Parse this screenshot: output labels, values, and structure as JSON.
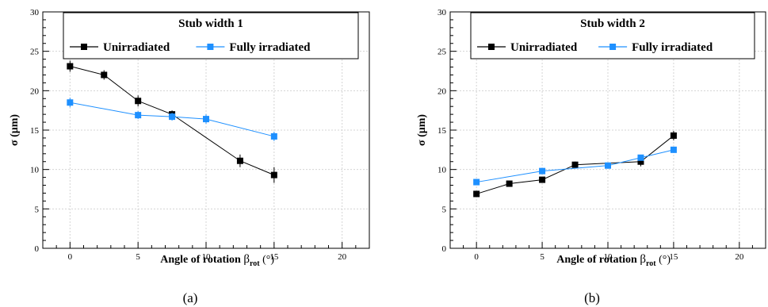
{
  "chart_data": [
    {
      "type": "line",
      "title": "Stub width 1",
      "xlabel": "Angle of rotation",
      "xlabel_symbol": "β",
      "xlabel_subscript": "rot",
      "xlabel_unit": "(°)",
      "ylabel": "σ (μm)",
      "caption": "(a)",
      "xlim": [
        -2,
        22
      ],
      "ylim": [
        0,
        30
      ],
      "xticks": [
        0,
        5,
        10,
        15,
        20
      ],
      "yticks": [
        0,
        5,
        10,
        15,
        20,
        25,
        30
      ],
      "grid": true,
      "legend_position": "top",
      "series": [
        {
          "name": "Unirradiated",
          "color": "#000000",
          "marker": "square",
          "x": [
            0,
            2.5,
            5,
            7.5,
            12.5,
            15
          ],
          "y": [
            23.1,
            22.0,
            18.7,
            17.0,
            11.1,
            9.3
          ],
          "err": [
            0.7,
            0.6,
            0.7,
            0.5,
            0.8,
            1.0
          ]
        },
        {
          "name": "Fully irradiated",
          "color": "#1e90ff",
          "marker": "square",
          "x": [
            0,
            5,
            7.5,
            10,
            15
          ],
          "y": [
            18.5,
            16.9,
            16.7,
            16.4,
            14.2
          ],
          "err": [
            0.6,
            0.5,
            0.5,
            0.6,
            0.6
          ]
        }
      ]
    },
    {
      "type": "line",
      "title": "Stub width 2",
      "xlabel": "Angle of rotation",
      "xlabel_symbol": "β",
      "xlabel_subscript": "rot",
      "xlabel_unit": "(°)",
      "ylabel": "σ (μm)",
      "caption": "(b)",
      "xlim": [
        -2,
        22
      ],
      "ylim": [
        0,
        30
      ],
      "xticks": [
        0,
        5,
        10,
        15,
        20
      ],
      "yticks": [
        0,
        5,
        10,
        15,
        20,
        25,
        30
      ],
      "grid": true,
      "legend_position": "top",
      "series": [
        {
          "name": "Unirradiated",
          "color": "#000000",
          "marker": "square",
          "x": [
            0,
            2.5,
            5,
            7.5,
            12.5,
            15
          ],
          "y": [
            6.9,
            8.2,
            8.7,
            10.6,
            11.0,
            14.3
          ],
          "err": [
            0.3,
            0.3,
            0.3,
            0.4,
            0.6,
            0.6
          ]
        },
        {
          "name": "Fully irradiated",
          "color": "#1e90ff",
          "marker": "square",
          "x": [
            0,
            5,
            10,
            12.5,
            15
          ],
          "y": [
            8.4,
            9.8,
            10.5,
            11.5,
            12.5
          ],
          "err": [
            0.3,
            0.3,
            0.3,
            0.3,
            0.3
          ]
        }
      ]
    }
  ]
}
